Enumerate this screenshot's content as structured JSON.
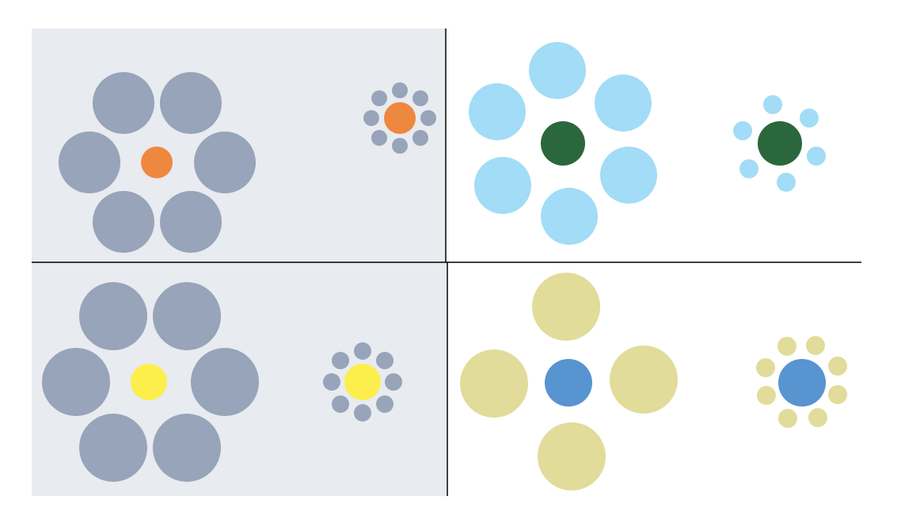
{
  "colors": {
    "page_background": "#ffffff",
    "panel_background": "#e8ebf0",
    "divider": "#000000",
    "gray_ring": "#97a4b9",
    "light_blue_ring": "#a2dcf6",
    "khaki_ring": "#e1dc99",
    "orange_center": "#ef883f",
    "dark_green_center": "#2b673d",
    "yellow_center": "#fcef4c",
    "blue_center": "#5794d0"
  },
  "panels": [
    {
      "id": "top-left",
      "background": "panel_background",
      "figures": [
        {
          "name": "large-surround",
          "center_color": "orange_center",
          "ring_color": "gray_ring",
          "ring_count": 6
        },
        {
          "name": "small-surround",
          "center_color": "orange_center",
          "ring_color": "gray_ring",
          "ring_count": 8
        }
      ]
    },
    {
      "id": "top-right",
      "background": "page_background",
      "figures": [
        {
          "name": "large-surround",
          "center_color": "dark_green_center",
          "ring_color": "light_blue_ring",
          "ring_count": 6
        },
        {
          "name": "small-surround",
          "center_color": "dark_green_center",
          "ring_color": "light_blue_ring",
          "ring_count": 6
        }
      ]
    },
    {
      "id": "bottom-left",
      "background": "panel_background",
      "figures": [
        {
          "name": "large-surround",
          "center_color": "yellow_center",
          "ring_color": "gray_ring",
          "ring_count": 6
        },
        {
          "name": "small-surround",
          "center_color": "yellow_center",
          "ring_color": "gray_ring",
          "ring_count": 8
        }
      ]
    },
    {
      "id": "bottom-right",
      "background": "page_background",
      "figures": [
        {
          "name": "large-surround",
          "center_color": "blue_center",
          "ring_color": "khaki_ring",
          "ring_count": 4
        },
        {
          "name": "small-surround",
          "center_color": "blue_center",
          "ring_color": "khaki_ring",
          "ring_count": 8
        }
      ]
    }
  ]
}
